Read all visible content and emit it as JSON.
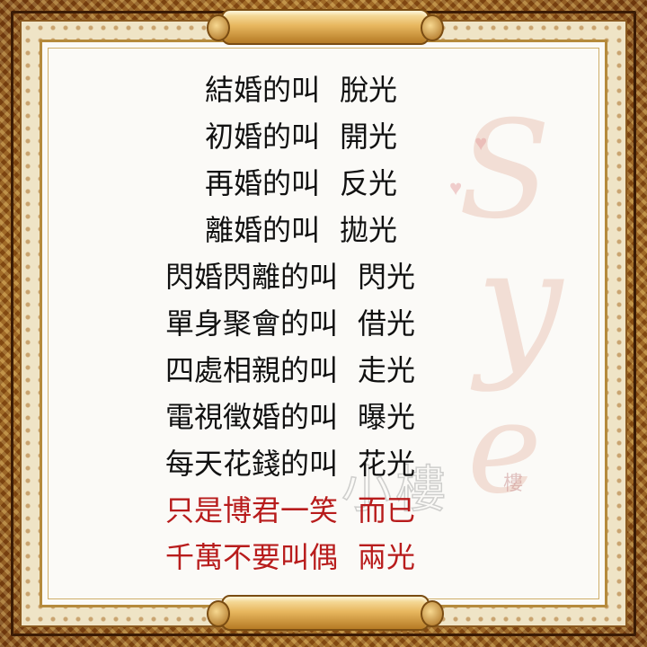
{
  "poem": {
    "lines": [
      {
        "q": "結婚的叫",
        "a": "脫光"
      },
      {
        "q": "初婚的叫",
        "a": "開光"
      },
      {
        "q": "再婚的叫",
        "a": "反光"
      },
      {
        "q": "離婚的叫",
        "a": "拋光"
      },
      {
        "q": "閃婚閃離的叫",
        "a": "閃光"
      },
      {
        "q": "單身聚會的叫",
        "a": "借光"
      },
      {
        "q": "四處相親的叫",
        "a": "走光"
      },
      {
        "q": "電視徵婚的叫",
        "a": "曝光"
      },
      {
        "q": "每天花錢的叫",
        "a": "花光"
      },
      {
        "q": "只是博君一笑",
        "a": "而已"
      },
      {
        "q": "千萬不要叫偶",
        "a": "兩光"
      }
    ]
  },
  "watermark": {
    "script_letters": [
      "S",
      "y",
      "e"
    ],
    "stamp": "小樓",
    "corner": "樓"
  },
  "colors": {
    "text": "#111111",
    "accent_red": "#b81c1c",
    "frame_gold": "#a0641b",
    "paper": "#fbfaf7"
  }
}
